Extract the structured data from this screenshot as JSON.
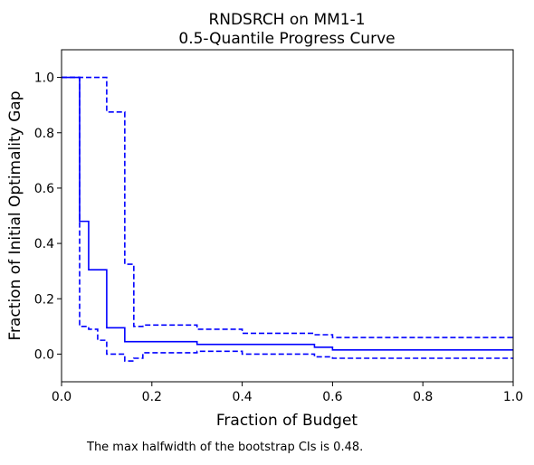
{
  "chart_data": {
    "type": "line",
    "title": "RNDSRCH on MM1-1",
    "subtitle": "0.5-Quantile Progress Curve",
    "xlabel": "Fraction of Budget",
    "ylabel": "Fraction of Initial Optimality Gap",
    "xlim": [
      0,
      1
    ],
    "ylim": [
      -0.1,
      1.1
    ],
    "xticks": [
      0.0,
      0.2,
      0.4,
      0.6,
      0.8,
      1.0
    ],
    "xtick_labels": [
      "0.0",
      "0.2",
      "0.4",
      "0.6",
      "0.8",
      "1.0"
    ],
    "yticks": [
      0.0,
      0.2,
      0.4,
      0.6,
      0.8,
      1.0
    ],
    "ytick_labels": [
      "0.0",
      "0.2",
      "0.4",
      "0.6",
      "0.8",
      "1.0"
    ],
    "grid": false,
    "legend": "none",
    "color": "#0000ff",
    "series": [
      {
        "style": "solid",
        "step": true,
        "x": [
          0,
          0.04,
          0.04,
          0.06,
          0.06,
          0.1,
          0.1,
          0.14,
          0.14,
          0.3,
          0.3,
          0.56,
          0.56,
          0.6,
          0.6,
          1.0
        ],
        "y": [
          1.0,
          1.0,
          0.48,
          0.48,
          0.305,
          0.305,
          0.095,
          0.095,
          0.045,
          0.045,
          0.035,
          0.035,
          0.025,
          0.025,
          0.015,
          0.015
        ]
      },
      {
        "style": "dashed",
        "step": true,
        "x": [
          0,
          0.1,
          0.1,
          0.14,
          0.14,
          0.16,
          0.16,
          0.18,
          0.18,
          0.3,
          0.3,
          0.4,
          0.4,
          0.56,
          0.56,
          0.6,
          0.6,
          1.0
        ],
        "y": [
          1.0,
          1.0,
          0.875,
          0.875,
          0.325,
          0.325,
          0.1,
          0.1,
          0.105,
          0.105,
          0.09,
          0.09,
          0.075,
          0.075,
          0.07,
          0.07,
          0.06,
          0.06
        ]
      },
      {
        "style": "dashed",
        "step": true,
        "x": [
          0,
          0.04,
          0.04,
          0.06,
          0.06,
          0.08,
          0.08,
          0.1,
          0.1,
          0.14,
          0.14,
          0.16,
          0.16,
          0.18,
          0.18,
          0.3,
          0.3,
          0.4,
          0.4,
          0.56,
          0.56,
          0.6,
          0.6,
          1.0
        ],
        "y": [
          1.0,
          1.0,
          0.1,
          0.1,
          0.09,
          0.09,
          0.05,
          0.05,
          0.0,
          0.0,
          -0.025,
          -0.025,
          -0.015,
          -0.015,
          0.005,
          0.005,
          0.01,
          0.01,
          0.0,
          0.0,
          -0.01,
          -0.01,
          -0.015,
          -0.015
        ]
      }
    ],
    "caption": "The max halfwidth of the bootstrap CIs is 0.48."
  }
}
